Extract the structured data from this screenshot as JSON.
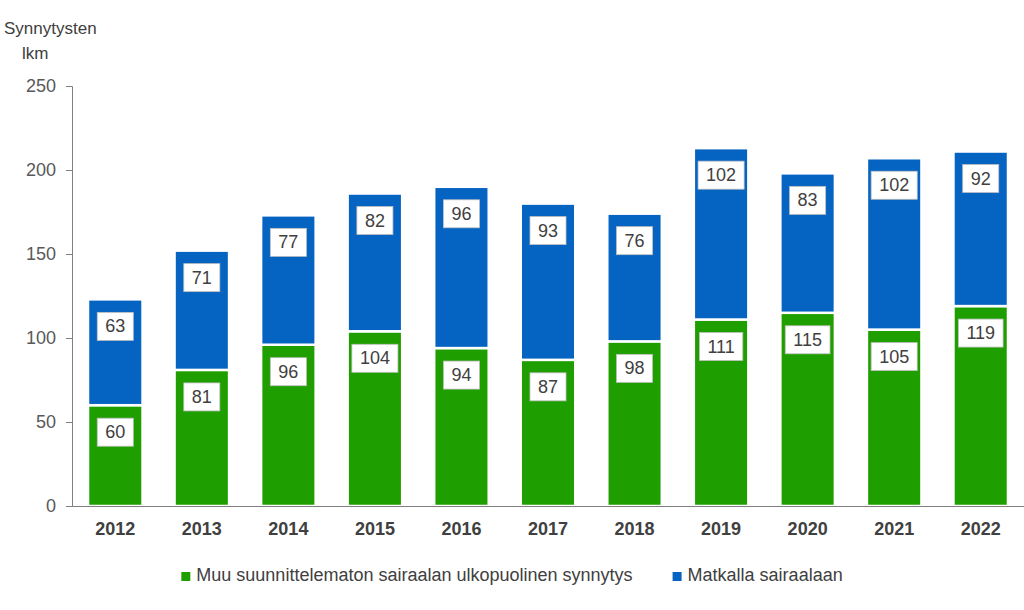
{
  "chart_data": {
    "type": "bar",
    "stacked": true,
    "data_labels": true,
    "grid": false,
    "legend": "bottom",
    "y_label": "Synnytysten lkm",
    "categories": [
      "2012",
      "2013",
      "2014",
      "2015",
      "2016",
      "2017",
      "2018",
      "2019",
      "2020",
      "2021",
      "2022"
    ],
    "series": [
      {
        "name": "Muu suunnittelematon sairaalan ulkopuolinen synnytys",
        "color": "#1f9e00",
        "values": [
          60,
          81,
          96,
          104,
          94,
          87,
          98,
          111,
          115,
          105,
          119
        ]
      },
      {
        "name": "Matkalla sairaalaan",
        "color": "#0563c1",
        "values": [
          63,
          71,
          77,
          82,
          96,
          93,
          76,
          102,
          83,
          102,
          92
        ]
      }
    ],
    "ylim": [
      0,
      250
    ],
    "yticks": [
      0,
      50,
      100,
      150,
      200,
      250
    ]
  }
}
